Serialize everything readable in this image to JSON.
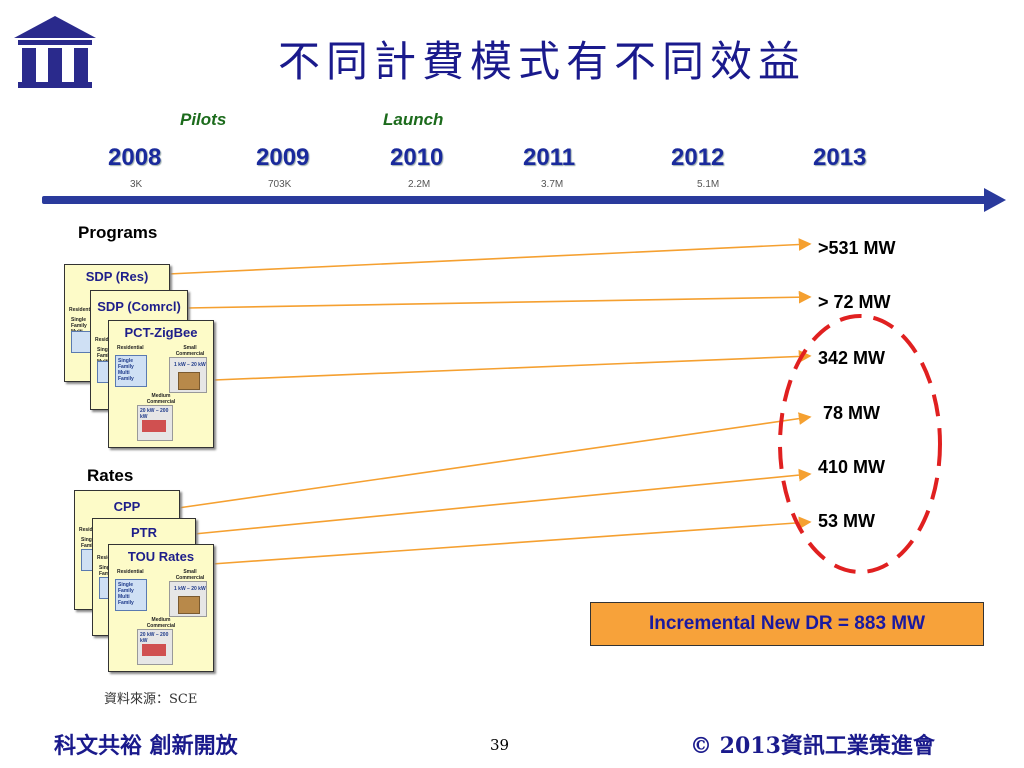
{
  "title": "不同計費模式有不同效益",
  "timeline": {
    "phases": [
      {
        "label": "Pilots"
      },
      {
        "label": "Launch"
      }
    ],
    "years": [
      "2008",
      "2009",
      "2010",
      "2011",
      "2012",
      "2013"
    ],
    "counts": [
      "3K",
      "703K",
      "2.2M",
      "3.7M",
      "5.1M"
    ]
  },
  "programs_label": "Programs",
  "rates_label": "Rates",
  "program_cards": [
    "SDP (Res)",
    "SDP (Comrcl)",
    "PCT-ZigBee"
  ],
  "rate_cards": [
    "CPP",
    "PTR",
    "TOU Rates"
  ],
  "card_inner": {
    "residential": "Residential",
    "small_commercial": "Small Commercial",
    "single_family": "Single Family Multi Family",
    "range1": "1 kW – 20 kW",
    "medium_commercial": "Medium Commercial",
    "range2": "20 kW – 200 kW"
  },
  "mw_values": [
    ">531 MW",
    "> 72 MW",
    "342 MW",
    " 78 MW",
    "410 MW",
    "53 MW"
  ],
  "incremental": "Incremental New DR = 883 MW",
  "source": "資料來源：SCE",
  "footer_left": "科文共裕 創新開放",
  "page_number": "39",
  "footer_right": "© 2013資訊工業策進會",
  "colors": {
    "title": "#1a1a8c",
    "year": "#1a2a9c",
    "phase": "#1c6b1c",
    "arrow_line": "#f5a030",
    "dashed_oval": "#e02020",
    "card_bg": "#fdfbc8",
    "dr_box": "#f7a23a",
    "timeline": "#2a3a9c"
  }
}
